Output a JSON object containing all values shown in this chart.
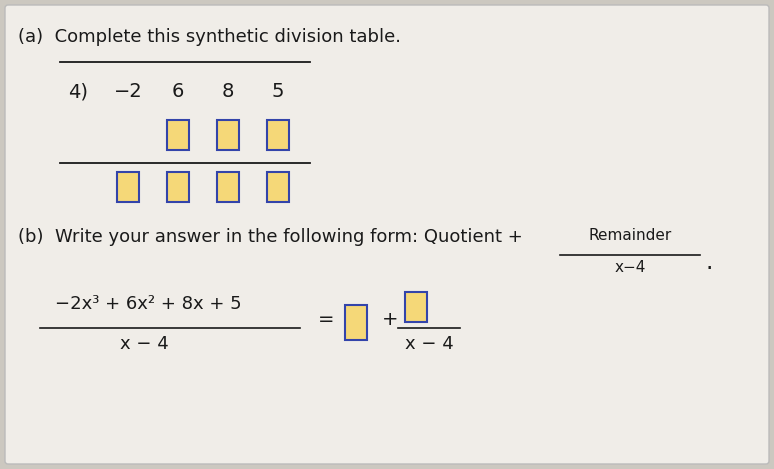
{
  "bg_color": "#ccc8c0",
  "panel_color": "#f0ede8",
  "text_color": "#1a1a1a",
  "box_fill": "#f5d878",
  "box_edge": "#3344aa",
  "title_a": "(a)  Complete this synthetic division table.",
  "part_b_text": "(b)  Write your answer in the following form: Quotient +",
  "remainder_label": "Remainder",
  "xm4_label": "x−4",
  "poly_numer": "−2x³ + 6x² + 8x + 5",
  "poly_denom": "x − 4",
  "ans_denom": "x − 4",
  "divisor": "4)",
  "coeffs": [
    "−2",
    "6",
    "8",
    "5"
  ],
  "font_size": 13,
  "font_size_small": 11
}
